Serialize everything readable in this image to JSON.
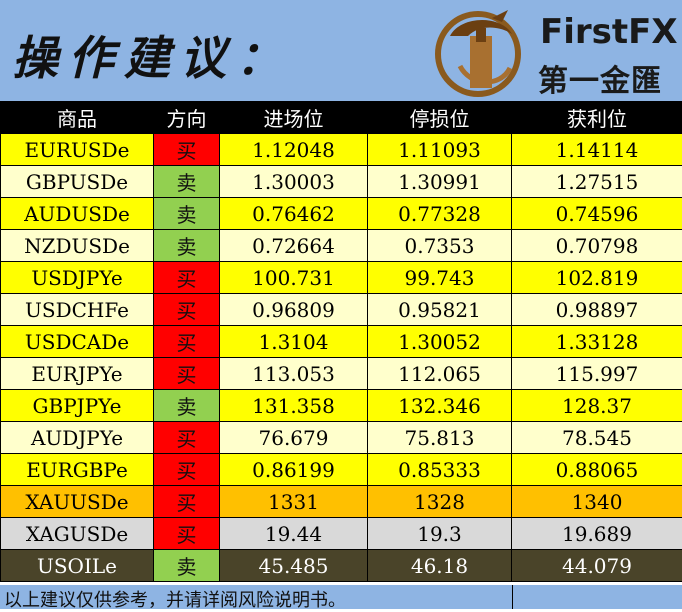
{
  "header": {
    "title": "操作建议：",
    "brand_en": "FirstFX",
    "brand_cn": "第一金匯",
    "logo_icon": "dragon-emblem-icon"
  },
  "colors": {
    "header_bg": "#8eb4e3",
    "buy": "#ff0000",
    "sell": "#92d050",
    "row_yellow": "#ffff00",
    "row_cream": "#ffffcc",
    "row_orange": "#ffc000",
    "row_gray": "#d9d9d9",
    "row_olive": "#4a4429"
  },
  "table": {
    "columns": [
      "商品",
      "方向",
      "进场位",
      "停损位",
      "获利位"
    ],
    "rows": [
      {
        "symbol": "EURUSDe",
        "direction": "买",
        "entry": "1.12048",
        "stop": "1.11093",
        "target": "1.14114",
        "side": "buy",
        "tone": "yellow"
      },
      {
        "symbol": "GBPUSDe",
        "direction": "卖",
        "entry": "1.30003",
        "stop": "1.30991",
        "target": "1.27515",
        "side": "sell",
        "tone": "cream"
      },
      {
        "symbol": "AUDUSDe",
        "direction": "卖",
        "entry": "0.76462",
        "stop": "0.77328",
        "target": "0.74596",
        "side": "sell",
        "tone": "yellow"
      },
      {
        "symbol": "NZDUSDe",
        "direction": "卖",
        "entry": "0.72664",
        "stop": "0.7353",
        "target": "0.70798",
        "side": "sell",
        "tone": "cream"
      },
      {
        "symbol": "USDJPYe",
        "direction": "买",
        "entry": "100.731",
        "stop": "99.743",
        "target": "102.819",
        "side": "buy",
        "tone": "yellow"
      },
      {
        "symbol": "USDCHFe",
        "direction": "买",
        "entry": "0.96809",
        "stop": "0.95821",
        "target": "0.98897",
        "side": "buy",
        "tone": "cream"
      },
      {
        "symbol": "USDCADe",
        "direction": "买",
        "entry": "1.3104",
        "stop": "1.30052",
        "target": "1.33128",
        "side": "buy",
        "tone": "yellow"
      },
      {
        "symbol": "EURJPYe",
        "direction": "买",
        "entry": "113.053",
        "stop": "112.065",
        "target": "115.997",
        "side": "buy",
        "tone": "cream"
      },
      {
        "symbol": "GBPJPYe",
        "direction": "卖",
        "entry": "131.358",
        "stop": "132.346",
        "target": "128.37",
        "side": "sell",
        "tone": "yellow"
      },
      {
        "symbol": "AUDJPYe",
        "direction": "买",
        "entry": "76.679",
        "stop": "75.813",
        "target": "78.545",
        "side": "buy",
        "tone": "cream"
      },
      {
        "symbol": "EURGBPe",
        "direction": "买",
        "entry": "0.86199",
        "stop": "0.85333",
        "target": "0.88065",
        "side": "buy",
        "tone": "yellow"
      },
      {
        "symbol": "XAUUSDe",
        "direction": "买",
        "entry": "1331",
        "stop": "1328",
        "target": "1340",
        "side": "buy",
        "tone": "orange"
      },
      {
        "symbol": "XAGUSDe",
        "direction": "买",
        "entry": "19.44",
        "stop": "19.3",
        "target": "19.689",
        "side": "buy",
        "tone": "gray"
      },
      {
        "symbol": "USOILe",
        "direction": "卖",
        "entry": "45.485",
        "stop": "46.18",
        "target": "44.079",
        "side": "sell",
        "tone": "olive"
      }
    ]
  },
  "footer": {
    "note": "以上建议仅供参考，并请详阅风险说明书。"
  }
}
